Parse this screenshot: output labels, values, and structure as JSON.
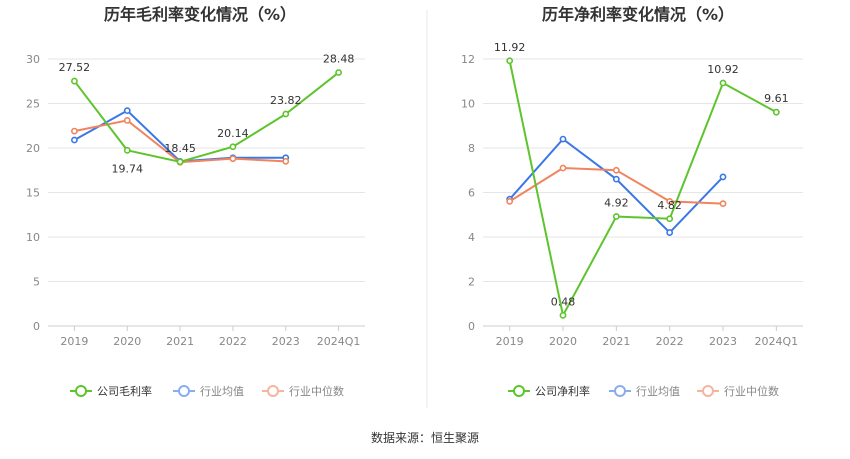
{
  "source_note": "数据来源：恒生聚源",
  "legend": {
    "left_series": "公司毛利率",
    "right_series": "公司净利率",
    "industry_avg": "行业均值",
    "industry_median": "行业中位数"
  },
  "colors": {
    "company": "#5ec42d",
    "industry_avg": "#3b78e7",
    "industry_median": "#f0845e",
    "grid": "#e6e6e6",
    "axis": "#cccccc",
    "divider": "#e8e8e8"
  },
  "chart_data": [
    {
      "type": "line",
      "title": "历年毛利率变化情况（%）",
      "categories": [
        "2019",
        "2020",
        "2021",
        "2022",
        "2023",
        "2024Q1"
      ],
      "ylim": [
        0,
        30
      ],
      "yticks": [
        0,
        5,
        10,
        15,
        20,
        25,
        30
      ],
      "series": [
        {
          "name": "公司毛利率",
          "key": "company",
          "values": [
            27.52,
            19.74,
            18.45,
            20.14,
            23.82,
            28.48
          ],
          "labels": [
            "27.52",
            "19.74",
            "18.45",
            "20.14",
            "23.82",
            "28.48"
          ]
        },
        {
          "name": "行业均值",
          "key": "industry_avg",
          "values": [
            20.9,
            24.2,
            18.5,
            18.9,
            18.9,
            null
          ]
        },
        {
          "name": "行业中位数",
          "key": "industry_median",
          "values": [
            21.9,
            23.1,
            18.4,
            18.8,
            18.5,
            null
          ]
        }
      ],
      "legend_position": "bottom",
      "grid": true
    },
    {
      "type": "line",
      "title": "历年净利率变化情况（%）",
      "categories": [
        "2019",
        "2020",
        "2021",
        "2022",
        "2023",
        "2024Q1"
      ],
      "ylim": [
        0,
        12
      ],
      "yticks": [
        0,
        2,
        4,
        6,
        8,
        10,
        12
      ],
      "series": [
        {
          "name": "公司净利率",
          "key": "company",
          "values": [
            11.92,
            0.48,
            4.92,
            4.82,
            10.92,
            9.61
          ],
          "labels": [
            "11.92",
            "0.48",
            "4.92",
            "4.82",
            "10.92",
            "9.61"
          ]
        },
        {
          "name": "行业均值",
          "key": "industry_avg",
          "values": [
            5.7,
            8.4,
            6.6,
            4.2,
            6.7,
            null
          ]
        },
        {
          "name": "行业中位数",
          "key": "industry_median",
          "values": [
            5.6,
            7.1,
            7.0,
            5.6,
            5.5,
            null
          ]
        }
      ],
      "legend_position": "bottom",
      "grid": true
    }
  ]
}
